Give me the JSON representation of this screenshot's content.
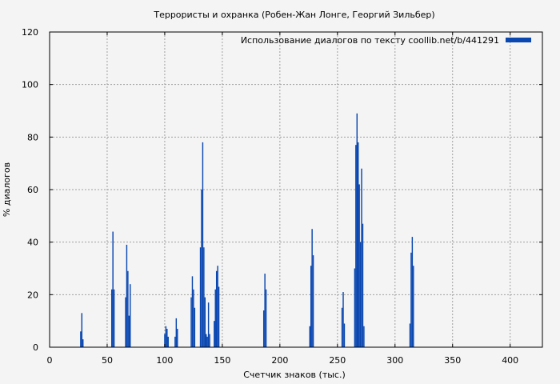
{
  "chart_data": {
    "type": "bar",
    "title": "Террористы и охранка (Робен-Жан Лонге, Георгий Зильбер)",
    "xlabel": "Счетчик знаков (тыс.)",
    "ylabel": "% диалогов",
    "xlim": [
      0,
      428
    ],
    "ylim": [
      0,
      120
    ],
    "x_ticks": [
      0,
      50,
      100,
      150,
      200,
      250,
      300,
      350,
      400
    ],
    "y_ticks": [
      0,
      20,
      40,
      60,
      80,
      100,
      120
    ],
    "grid": true,
    "legend_position": "top-right",
    "bar_color": "#0a47b0",
    "series": [
      {
        "name": "Использование диалогов по тексту  coollib.net/b/441291",
        "x": [
          27,
          28,
          29,
          54,
          55,
          56,
          66,
          67,
          68,
          69,
          70,
          100,
          101,
          102,
          103,
          109,
          110,
          111,
          123,
          124,
          125,
          126,
          131,
          132,
          133,
          134,
          135,
          136,
          137,
          138,
          139,
          143,
          144,
          145,
          146,
          147,
          186,
          187,
          188,
          226,
          227,
          228,
          229,
          254,
          255,
          256,
          265,
          266,
          267,
          268,
          269,
          270,
          271,
          272,
          273,
          313,
          314,
          315,
          316
        ],
        "values": [
          6,
          13,
          3,
          22,
          44,
          22,
          19,
          39,
          29,
          12,
          24,
          5,
          8,
          7,
          4,
          4,
          11,
          7,
          19,
          27,
          22,
          15,
          38,
          60,
          78,
          38,
          19,
          5,
          4,
          17,
          5,
          10,
          22,
          29,
          31,
          23,
          14,
          28,
          22,
          8,
          31,
          45,
          35,
          15,
          21,
          9,
          30,
          77,
          89,
          78,
          62,
          40,
          68,
          47,
          8,
          9,
          36,
          42,
          31
        ]
      }
    ]
  }
}
